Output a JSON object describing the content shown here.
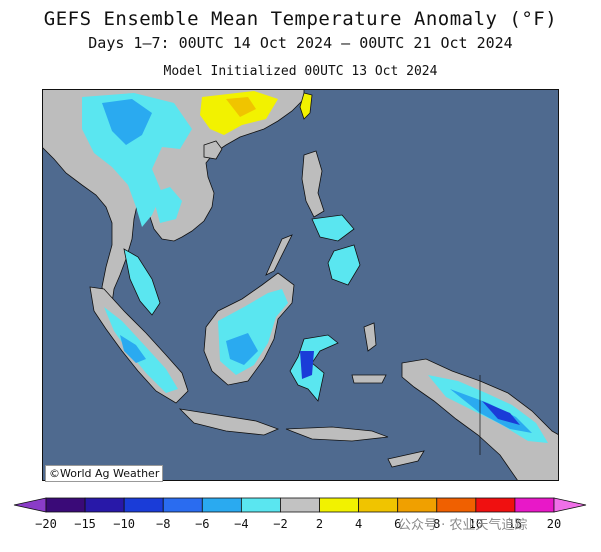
{
  "header": {
    "title": "GEFS Ensemble Mean Temperature Anomaly (°F)",
    "period": "Days 1–7: 00UTC 14 Oct 2024 – 00UTC 21 Oct 2024",
    "init": "Model Initialized 00UTC 13 Oct 2024"
  },
  "map": {
    "region": "Southeast Asia",
    "credit": "©World Ag Weather",
    "ocean_color": "#4f6a8f",
    "land_neutral_color": "#bdbdbd"
  },
  "colorbar": {
    "ticks": [
      "−20",
      "−15",
      "−10",
      "−8",
      "−6",
      "−4",
      "−2",
      "2",
      "4",
      "6",
      "8",
      "10",
      "15",
      "20"
    ],
    "colors": [
      "#3a0a78",
      "#2818a8",
      "#1a3cd8",
      "#2a6cf0",
      "#2aaaf0",
      "#5ae6f0",
      "#c2c2c2",
      "#f2f200",
      "#f0c400",
      "#f0a000",
      "#f06000",
      "#f01010",
      "#e818c8"
    ]
  },
  "watermark": "公众号 · 农业天气追踪"
}
